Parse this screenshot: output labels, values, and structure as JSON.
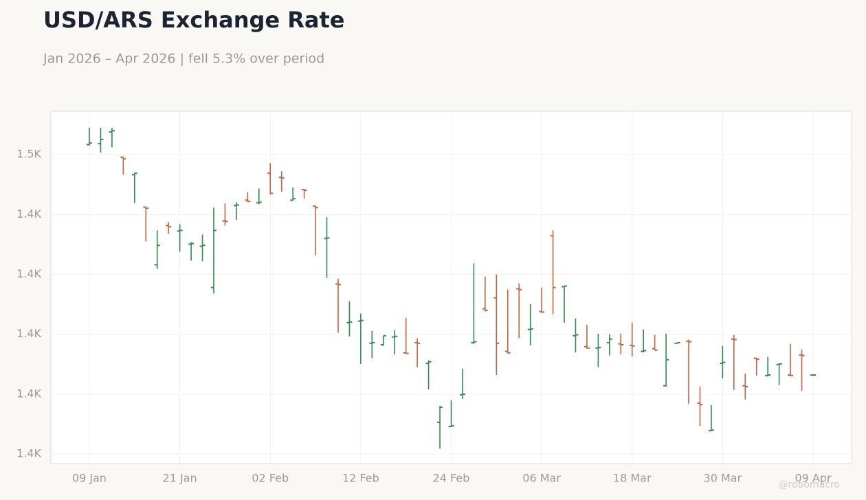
{
  "chart_data": {
    "type": "ohlc",
    "title": "USD/ARS Exchange Rate",
    "subtitle": "Jan 2026 – Apr 2026 | fell 5.3% over period",
    "watermark": "@robomacro",
    "up_color": "#2f8a4f",
    "down_color": "#c8623a",
    "grid": true,
    "categories": [
      "09 Jan",
      null,
      null,
      null,
      null,
      null,
      null,
      null,
      "21 Jan",
      null,
      null,
      null,
      null,
      null,
      null,
      null,
      "02 Feb",
      null,
      null,
      null,
      null,
      null,
      null,
      null,
      "12 Feb",
      null,
      null,
      null,
      null,
      null,
      null,
      null,
      "24 Feb",
      null,
      null,
      null,
      null,
      null,
      null,
      null,
      "06 Mar",
      null,
      null,
      null,
      null,
      null,
      null,
      null,
      "18 Mar",
      null,
      null,
      null,
      null,
      null,
      null,
      null,
      "30 Mar",
      null,
      null,
      null,
      null,
      null,
      null,
      null,
      "09 Apr"
    ],
    "open": [
      1463.4,
      1463.7,
      1467.6,
      1459.1,
      1453.3,
      1442.5,
      1423.2,
      1436.3,
      1434.5,
      1430.1,
      1429.4,
      1415.6,
      1437.9,
      1443.0,
      1444.8,
      1443.9,
      1453.8,
      1452.4,
      1444.8,
      1448.3,
      1442.8,
      1432.0,
      1416.8,
      1403.9,
      1404.4,
      1397.0,
      1396.5,
      1399.1,
      1393.8,
      1397.2,
      1390.3,
      1370.6,
      1369.2,
      1379.8,
      1397.2,
      1408.5,
      1412.2,
      1394.3,
      1415.2,
      1401.6,
      1407.6,
      1432.9,
      1415.9,
      1399.5,
      1395.9,
      1395.4,
      1397.2,
      1396.8,
      1396.3,
      1394.3,
      1395.2,
      1382.8,
      1397.0,
      1397.7,
      1377.0,
      1367.8,
      1390.3,
      1398.4,
      1382.8,
      1392.0,
      1386.2,
      1389.9,
      1386.4,
      1393.1,
      1386.4
    ],
    "high": [
      1469.0,
      1469.0,
      1469.0,
      1459.3,
      1453.8,
      1442.5,
      1434.7,
      1437.5,
      1436.8,
      1430.8,
      1433.3,
      1442.3,
      1443.7,
      1444.1,
      1447.4,
      1448.7,
      1457.2,
      1454.5,
      1449.0,
      1448.5,
      1443.0,
      1439.1,
      1418.6,
      1411.0,
      1406.9,
      1401.1,
      1399.5,
      1401.4,
      1405.5,
      1398.6,
      1391.3,
      1376.1,
      1377.9,
      1388.5,
      1423.7,
      1419.3,
      1420.0,
      1414.9,
      1417.0,
      1410.1,
      1415.6,
      1434.7,
      1416.1,
      1405.3,
      1403.2,
      1400.2,
      1400.0,
      1400.2,
      1403.9,
      1401.6,
      1399.8,
      1400.2,
      1397.2,
      1398.2,
      1382.5,
      1376.3,
      1396.1,
      1399.8,
      1386.9,
      1392.2,
      1392.4,
      1390.3,
      1396.8,
      1394.9,
      1386.4
    ],
    "low": [
      1463.0,
      1460.7,
      1462.5,
      1453.3,
      1443.9,
      1431.0,
      1421.8,
      1433.6,
      1427.6,
      1424.6,
      1424.4,
      1413.6,
      1436.3,
      1438.2,
      1444.1,
      1443.4,
      1446.7,
      1447.6,
      1444.6,
      1445.3,
      1426.4,
      1418.8,
      1400.5,
      1399.3,
      1390.1,
      1392.0,
      1396.1,
      1393.3,
      1393.6,
      1389.0,
      1381.6,
      1361.8,
      1369.2,
      1378.4,
      1396.8,
      1407.6,
      1386.4,
      1393.6,
      1398.8,
      1396.3,
      1407.1,
      1406.7,
      1403.9,
      1394.0,
      1395.2,
      1389.0,
      1392.9,
      1393.3,
      1392.6,
      1394.0,
      1394.7,
      1382.5,
      1397.0,
      1376.8,
      1369.4,
      1367.8,
      1385.3,
      1381.4,
      1378.2,
      1386.2,
      1386.0,
      1383.0,
      1386.2,
      1381.1,
      1386.4
    ],
    "close": [
      1463.9,
      1465.1,
      1468.0,
      1458.6,
      1453.8,
      1442.1,
      1429.7,
      1435.9,
      1434.7,
      1430.3,
      1429.7,
      1434.7,
      1437.7,
      1443.2,
      1444.4,
      1444.1,
      1447.1,
      1452.2,
      1445.3,
      1448.1,
      1442.3,
      1432.2,
      1416.6,
      1404.1,
      1404.6,
      1397.2,
      1399.5,
      1399.3,
      1393.6,
      1397.0,
      1390.8,
      1375.6,
      1369.4,
      1380.0,
      1397.5,
      1408.0,
      1397.0,
      1393.8,
      1414.9,
      1401.8,
      1407.4,
      1415.6,
      1416.1,
      1399.8,
      1395.4,
      1395.6,
      1398.4,
      1396.5,
      1396.1,
      1394.5,
      1394.7,
      1391.5,
      1397.2,
      1397.5,
      1376.5,
      1368.0,
      1390.6,
      1398.2,
      1382.5,
      1391.7,
      1386.4,
      1390.1,
      1386.2,
      1392.9,
      1386.4
    ],
    "ylim": [
      1356.8,
      1474.5
    ],
    "yticks": [
      {
        "value": 1360,
        "label": "1.4K"
      },
      {
        "value": 1380,
        "label": "1.4K"
      },
      {
        "value": 1400,
        "label": "1.4K"
      },
      {
        "value": 1420,
        "label": "1.4K"
      },
      {
        "value": 1440,
        "label": "1.4K"
      },
      {
        "value": 1460,
        "label": "1.5K"
      }
    ]
  }
}
